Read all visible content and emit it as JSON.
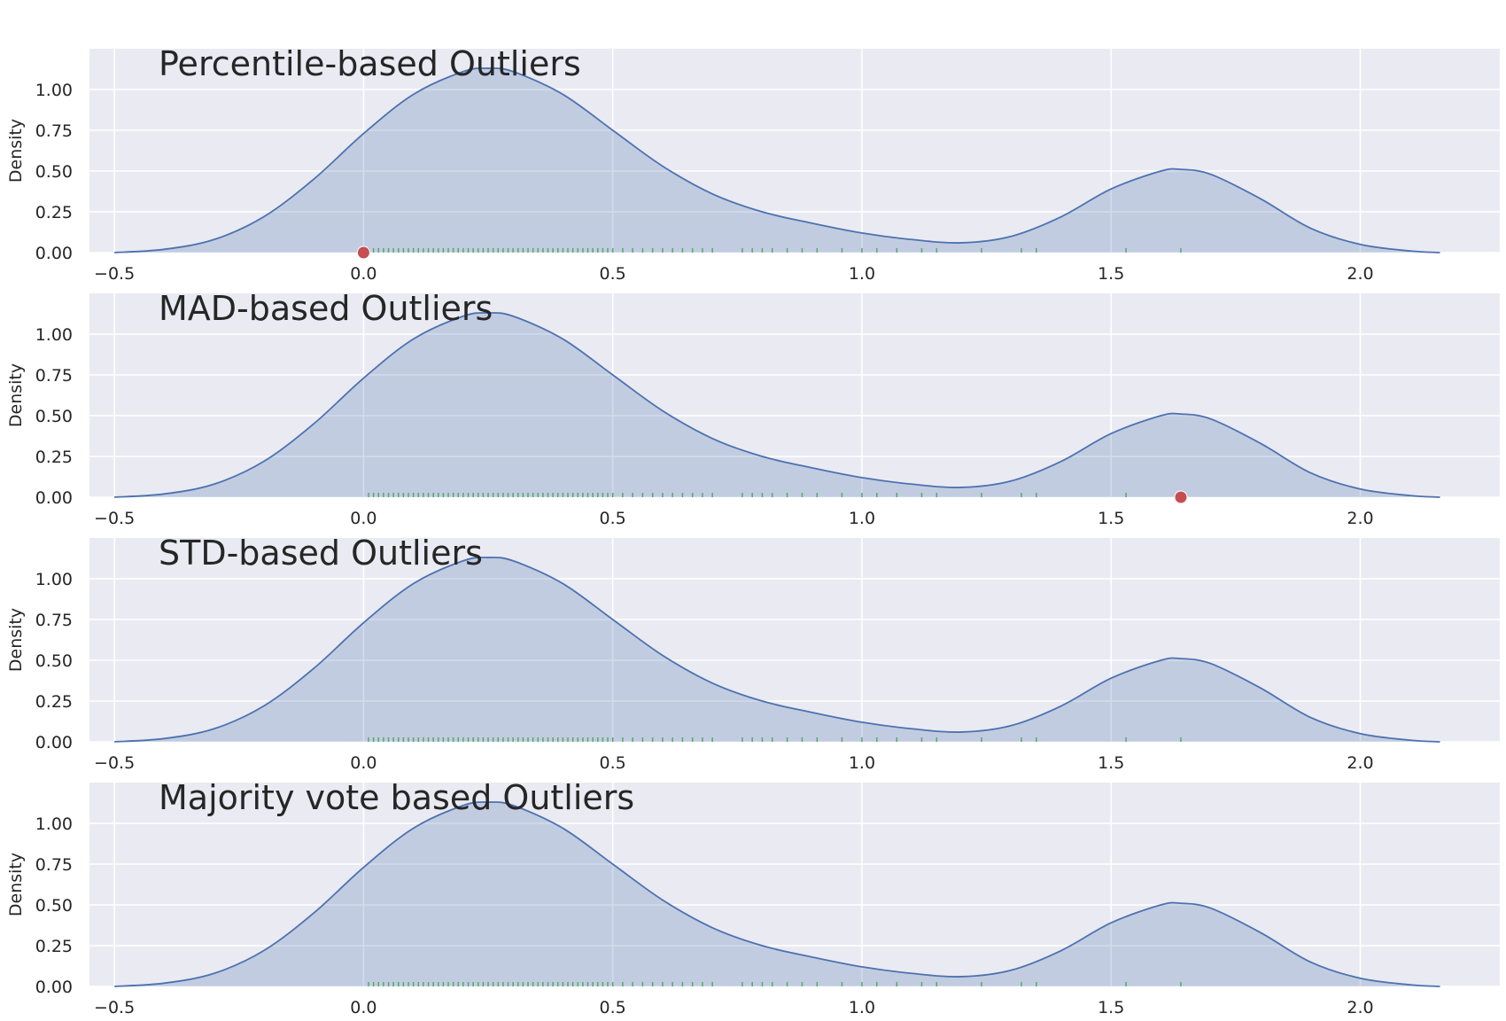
{
  "style": {
    "plot_background": "#eaeaf2",
    "grid_color": "#ffffff",
    "kde_line_color": "#4c72b0",
    "kde_fill_color": "#4c72b0",
    "rug_color": "#55a868",
    "outlier_color": "#c44e52"
  },
  "chart_data": [
    {
      "type": "area",
      "title": "Percentile-based Outliers",
      "ylabel": "Density",
      "xlabel": "",
      "xlim": [
        -0.55,
        2.28
      ],
      "ylim": [
        0,
        1.25
      ],
      "xticks": [
        -0.5,
        0.0,
        0.5,
        1.0,
        1.5,
        2.0
      ],
      "xtick_labels": [
        "−0.5",
        "0.0",
        "0.5",
        "1.0",
        "1.5",
        "2.0"
      ],
      "yticks": [
        0.0,
        0.25,
        0.5,
        0.75,
        1.0
      ],
      "ytick_labels": [
        "0.00",
        "0.25",
        "0.50",
        "0.75",
        "1.00"
      ],
      "grid": true,
      "kde": {
        "x": [
          -0.5,
          -0.4,
          -0.3,
          -0.2,
          -0.1,
          0.0,
          0.1,
          0.2,
          0.25,
          0.3,
          0.4,
          0.5,
          0.6,
          0.7,
          0.8,
          0.9,
          1.0,
          1.1,
          1.2,
          1.3,
          1.4,
          1.5,
          1.6,
          1.64,
          1.7,
          1.8,
          1.9,
          2.0,
          2.1,
          2.16
        ],
        "y": [
          0.0,
          0.02,
          0.08,
          0.22,
          0.45,
          0.73,
          0.97,
          1.11,
          1.13,
          1.11,
          0.97,
          0.75,
          0.53,
          0.36,
          0.25,
          0.18,
          0.12,
          0.08,
          0.06,
          0.1,
          0.22,
          0.39,
          0.5,
          0.51,
          0.48,
          0.33,
          0.15,
          0.05,
          0.01,
          0.0
        ]
      },
      "rug": [
        0.01,
        0.02,
        0.03,
        0.04,
        0.05,
        0.06,
        0.07,
        0.08,
        0.09,
        0.1,
        0.11,
        0.12,
        0.13,
        0.14,
        0.15,
        0.16,
        0.17,
        0.18,
        0.19,
        0.2,
        0.21,
        0.22,
        0.23,
        0.24,
        0.25,
        0.26,
        0.27,
        0.28,
        0.29,
        0.3,
        0.31,
        0.32,
        0.33,
        0.34,
        0.35,
        0.36,
        0.37,
        0.38,
        0.39,
        0.4,
        0.41,
        0.42,
        0.43,
        0.44,
        0.45,
        0.46,
        0.47,
        0.48,
        0.49,
        0.5,
        0.52,
        0.54,
        0.56,
        0.58,
        0.6,
        0.62,
        0.64,
        0.66,
        0.68,
        0.7,
        0.76,
        0.78,
        0.8,
        0.82,
        0.85,
        0.88,
        0.91,
        0.96,
        1.0,
        1.03,
        1.07,
        1.12,
        1.15,
        1.24,
        1.32,
        1.35,
        1.53,
        1.64
      ],
      "outliers": [
        0.0
      ]
    },
    {
      "type": "area",
      "title": "MAD-based Outliers",
      "ylabel": "Density",
      "xlabel": "",
      "xlim": [
        -0.55,
        2.28
      ],
      "ylim": [
        0,
        1.25
      ],
      "xticks": [
        -0.5,
        0.0,
        0.5,
        1.0,
        1.5,
        2.0
      ],
      "xtick_labels": [
        "−0.5",
        "0.0",
        "0.5",
        "1.0",
        "1.5",
        "2.0"
      ],
      "yticks": [
        0.0,
        0.25,
        0.5,
        0.75,
        1.0
      ],
      "ytick_labels": [
        "0.00",
        "0.25",
        "0.50",
        "0.75",
        "1.00"
      ],
      "grid": true,
      "kde": {
        "x": [
          -0.5,
          -0.4,
          -0.3,
          -0.2,
          -0.1,
          0.0,
          0.1,
          0.2,
          0.25,
          0.3,
          0.4,
          0.5,
          0.6,
          0.7,
          0.8,
          0.9,
          1.0,
          1.1,
          1.2,
          1.3,
          1.4,
          1.5,
          1.6,
          1.64,
          1.7,
          1.8,
          1.9,
          2.0,
          2.1,
          2.16
        ],
        "y": [
          0.0,
          0.02,
          0.08,
          0.22,
          0.45,
          0.73,
          0.97,
          1.11,
          1.13,
          1.11,
          0.97,
          0.75,
          0.53,
          0.36,
          0.25,
          0.18,
          0.12,
          0.08,
          0.06,
          0.1,
          0.22,
          0.39,
          0.5,
          0.51,
          0.48,
          0.33,
          0.15,
          0.05,
          0.01,
          0.0
        ]
      },
      "rug": [
        0.01,
        0.02,
        0.03,
        0.04,
        0.05,
        0.06,
        0.07,
        0.08,
        0.09,
        0.1,
        0.11,
        0.12,
        0.13,
        0.14,
        0.15,
        0.16,
        0.17,
        0.18,
        0.19,
        0.2,
        0.21,
        0.22,
        0.23,
        0.24,
        0.25,
        0.26,
        0.27,
        0.28,
        0.29,
        0.3,
        0.31,
        0.32,
        0.33,
        0.34,
        0.35,
        0.36,
        0.37,
        0.38,
        0.39,
        0.4,
        0.41,
        0.42,
        0.43,
        0.44,
        0.45,
        0.46,
        0.47,
        0.48,
        0.49,
        0.5,
        0.52,
        0.54,
        0.56,
        0.58,
        0.6,
        0.62,
        0.64,
        0.66,
        0.68,
        0.7,
        0.76,
        0.78,
        0.8,
        0.82,
        0.85,
        0.88,
        0.91,
        0.96,
        1.0,
        1.03,
        1.07,
        1.12,
        1.15,
        1.24,
        1.32,
        1.35,
        1.53,
        1.64
      ],
      "outliers": [
        1.64
      ]
    },
    {
      "type": "area",
      "title": "STD-based Outliers",
      "ylabel": "Density",
      "xlabel": "",
      "xlim": [
        -0.55,
        2.28
      ],
      "ylim": [
        0,
        1.25
      ],
      "xticks": [
        -0.5,
        0.0,
        0.5,
        1.0,
        1.5,
        2.0
      ],
      "xtick_labels": [
        "−0.5",
        "0.0",
        "0.5",
        "1.0",
        "1.5",
        "2.0"
      ],
      "yticks": [
        0.0,
        0.25,
        0.5,
        0.75,
        1.0
      ],
      "ytick_labels": [
        "0.00",
        "0.25",
        "0.50",
        "0.75",
        "1.00"
      ],
      "grid": true,
      "kde": {
        "x": [
          -0.5,
          -0.4,
          -0.3,
          -0.2,
          -0.1,
          0.0,
          0.1,
          0.2,
          0.25,
          0.3,
          0.4,
          0.5,
          0.6,
          0.7,
          0.8,
          0.9,
          1.0,
          1.1,
          1.2,
          1.3,
          1.4,
          1.5,
          1.6,
          1.64,
          1.7,
          1.8,
          1.9,
          2.0,
          2.1,
          2.16
        ],
        "y": [
          0.0,
          0.02,
          0.08,
          0.22,
          0.45,
          0.73,
          0.97,
          1.11,
          1.13,
          1.11,
          0.97,
          0.75,
          0.53,
          0.36,
          0.25,
          0.18,
          0.12,
          0.08,
          0.06,
          0.1,
          0.22,
          0.39,
          0.5,
          0.51,
          0.48,
          0.33,
          0.15,
          0.05,
          0.01,
          0.0
        ]
      },
      "rug": [
        0.01,
        0.02,
        0.03,
        0.04,
        0.05,
        0.06,
        0.07,
        0.08,
        0.09,
        0.1,
        0.11,
        0.12,
        0.13,
        0.14,
        0.15,
        0.16,
        0.17,
        0.18,
        0.19,
        0.2,
        0.21,
        0.22,
        0.23,
        0.24,
        0.25,
        0.26,
        0.27,
        0.28,
        0.29,
        0.3,
        0.31,
        0.32,
        0.33,
        0.34,
        0.35,
        0.36,
        0.37,
        0.38,
        0.39,
        0.4,
        0.41,
        0.42,
        0.43,
        0.44,
        0.45,
        0.46,
        0.47,
        0.48,
        0.49,
        0.5,
        0.52,
        0.54,
        0.56,
        0.58,
        0.6,
        0.62,
        0.64,
        0.66,
        0.68,
        0.7,
        0.76,
        0.78,
        0.8,
        0.82,
        0.85,
        0.88,
        0.91,
        0.96,
        1.0,
        1.03,
        1.07,
        1.12,
        1.15,
        1.24,
        1.32,
        1.35,
        1.53,
        1.64
      ],
      "outliers": []
    },
    {
      "type": "area",
      "title": "Majority vote based Outliers",
      "ylabel": "Density",
      "xlabel": "",
      "xlim": [
        -0.55,
        2.28
      ],
      "ylim": [
        0,
        1.25
      ],
      "xticks": [
        -0.5,
        0.0,
        0.5,
        1.0,
        1.5,
        2.0
      ],
      "xtick_labels": [
        "−0.5",
        "0.0",
        "0.5",
        "1.0",
        "1.5",
        "2.0"
      ],
      "yticks": [
        0.0,
        0.25,
        0.5,
        0.75,
        1.0
      ],
      "ytick_labels": [
        "0.00",
        "0.25",
        "0.50",
        "0.75",
        "1.00"
      ],
      "grid": true,
      "kde": {
        "x": [
          -0.5,
          -0.4,
          -0.3,
          -0.2,
          -0.1,
          0.0,
          0.1,
          0.2,
          0.25,
          0.3,
          0.4,
          0.5,
          0.6,
          0.7,
          0.8,
          0.9,
          1.0,
          1.1,
          1.2,
          1.3,
          1.4,
          1.5,
          1.6,
          1.64,
          1.7,
          1.8,
          1.9,
          2.0,
          2.1,
          2.16
        ],
        "y": [
          0.0,
          0.02,
          0.08,
          0.22,
          0.45,
          0.73,
          0.97,
          1.11,
          1.13,
          1.11,
          0.97,
          0.75,
          0.53,
          0.36,
          0.25,
          0.18,
          0.12,
          0.08,
          0.06,
          0.1,
          0.22,
          0.39,
          0.5,
          0.51,
          0.48,
          0.33,
          0.15,
          0.05,
          0.01,
          0.0
        ]
      },
      "rug": [
        0.01,
        0.02,
        0.03,
        0.04,
        0.05,
        0.06,
        0.07,
        0.08,
        0.09,
        0.1,
        0.11,
        0.12,
        0.13,
        0.14,
        0.15,
        0.16,
        0.17,
        0.18,
        0.19,
        0.2,
        0.21,
        0.22,
        0.23,
        0.24,
        0.25,
        0.26,
        0.27,
        0.28,
        0.29,
        0.3,
        0.31,
        0.32,
        0.33,
        0.34,
        0.35,
        0.36,
        0.37,
        0.38,
        0.39,
        0.4,
        0.41,
        0.42,
        0.43,
        0.44,
        0.45,
        0.46,
        0.47,
        0.48,
        0.49,
        0.5,
        0.52,
        0.54,
        0.56,
        0.58,
        0.6,
        0.62,
        0.64,
        0.66,
        0.68,
        0.7,
        0.76,
        0.78,
        0.8,
        0.82,
        0.85,
        0.88,
        0.91,
        0.96,
        1.0,
        1.03,
        1.07,
        1.12,
        1.15,
        1.24,
        1.32,
        1.35,
        1.53,
        1.64
      ],
      "outliers": []
    }
  ]
}
